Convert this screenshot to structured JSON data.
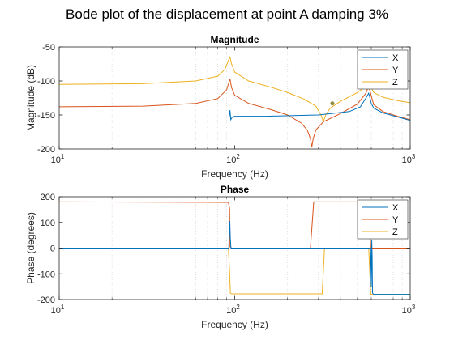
{
  "figure": {
    "title": "Bode plot of the displacement at point A damping 3%"
  },
  "colors": {
    "X": "#0072BD",
    "Y": "#D95319",
    "Z": "#EDB120",
    "marker": "#8c8c3c"
  },
  "chart_data": [
    {
      "type": "line",
      "title": "Magnitude",
      "xlabel": "Frequency (Hz)",
      "ylabel": "Magnitude (dB)",
      "xscale": "log",
      "xlim": [
        10,
        1000
      ],
      "ylim": [
        -200,
        -50
      ],
      "yticks": [
        -200,
        -150,
        -100,
        -50
      ],
      "xticks": [
        {
          "v": 10,
          "base": "10",
          "exp": "1"
        },
        {
          "v": 100,
          "base": "10",
          "exp": "2"
        },
        {
          "v": 1000,
          "base": "10",
          "exp": "3"
        }
      ],
      "grid": "minor-x",
      "legend": "top-right",
      "series": [
        {
          "name": "X",
          "x": [
            10,
            30,
            80,
            90,
            93,
            94,
            95,
            97,
            100,
            150,
            300,
            450,
            520,
            560,
            580,
            590,
            600,
            620,
            700,
            850,
            1000
          ],
          "y": [
            -153,
            -153,
            -153,
            -153,
            -153,
            -143,
            -157,
            -153,
            -152,
            -152,
            -150,
            -145,
            -138,
            -125,
            -118,
            -125,
            -133,
            -140,
            -147,
            -153,
            -158
          ]
        },
        {
          "name": "Y",
          "x": [
            10,
            30,
            60,
            80,
            90,
            94,
            96,
            100,
            120,
            160,
            200,
            240,
            260,
            270,
            275,
            280,
            290,
            320,
            400,
            500,
            560,
            580,
            600,
            620,
            700,
            850,
            1000
          ],
          "y": [
            -138,
            -137,
            -133,
            -126,
            -113,
            -97,
            -110,
            -121,
            -133,
            -142,
            -150,
            -162,
            -173,
            -185,
            -197,
            -185,
            -172,
            -160,
            -148,
            -134,
            -118,
            -107,
            -122,
            -135,
            -145,
            -152,
            -157
          ]
        },
        {
          "name": "Z",
          "x": [
            10,
            30,
            60,
            80,
            88,
            92,
            94,
            96,
            100,
            120,
            160,
            200,
            250,
            290,
            310,
            320,
            330,
            350,
            400,
            500,
            560,
            580,
            600,
            620,
            700,
            850,
            1000
          ],
          "y": [
            -105,
            -104,
            -100,
            -93,
            -83,
            -70,
            -65,
            -75,
            -87,
            -100,
            -109,
            -117,
            -127,
            -137,
            -150,
            -160,
            -150,
            -140,
            -130,
            -117,
            -108,
            -103,
            -110,
            -117,
            -124,
            -129,
            -132
          ]
        }
      ],
      "annotations": [
        {
          "x": 360,
          "y": -133,
          "kind": "point"
        }
      ]
    },
    {
      "type": "line",
      "title": "Phase",
      "xlabel": "Frequency (Hz)",
      "ylabel": "Phase (degrees)",
      "xscale": "log",
      "xlim": [
        10,
        1000
      ],
      "ylim": [
        -200,
        200
      ],
      "yticks": [
        -200,
        -100,
        0,
        100,
        200
      ],
      "xticks": [
        {
          "v": 10,
          "base": "10",
          "exp": "1"
        },
        {
          "v": 100,
          "base": "10",
          "exp": "2"
        },
        {
          "v": 1000,
          "base": "10",
          "exp": "3"
        }
      ],
      "grid": "minor-x",
      "legend": "top-right",
      "series": [
        {
          "name": "X",
          "x": [
            10,
            92.5,
            93.2,
            93.8,
            94.4,
            95.2,
            96,
            595,
            600,
            604,
            607,
            610,
            620,
            1000
          ],
          "y": [
            0,
            0,
            60,
            105,
            40,
            0,
            0,
            0,
            -150,
            30,
            -30,
            -175,
            -180,
            -180
          ]
        },
        {
          "name": "Y",
          "x": [
            10,
            92,
            93.5,
            94,
            96,
            270,
            276,
            282,
            580,
            588,
            596,
            1000
          ],
          "y": [
            180,
            178,
            155,
            5,
            0,
            0,
            90,
            180,
            180,
            90,
            0,
            0
          ]
        },
        {
          "name": "Z",
          "x": [
            10,
            92,
            93.5,
            94.5,
            96,
            315,
            320,
            325,
            580,
            588,
            596,
            1000
          ],
          "y": [
            0,
            0,
            -90,
            -175,
            -178,
            -178,
            -90,
            0,
            0,
            -90,
            -180,
            -180
          ]
        }
      ]
    }
  ]
}
